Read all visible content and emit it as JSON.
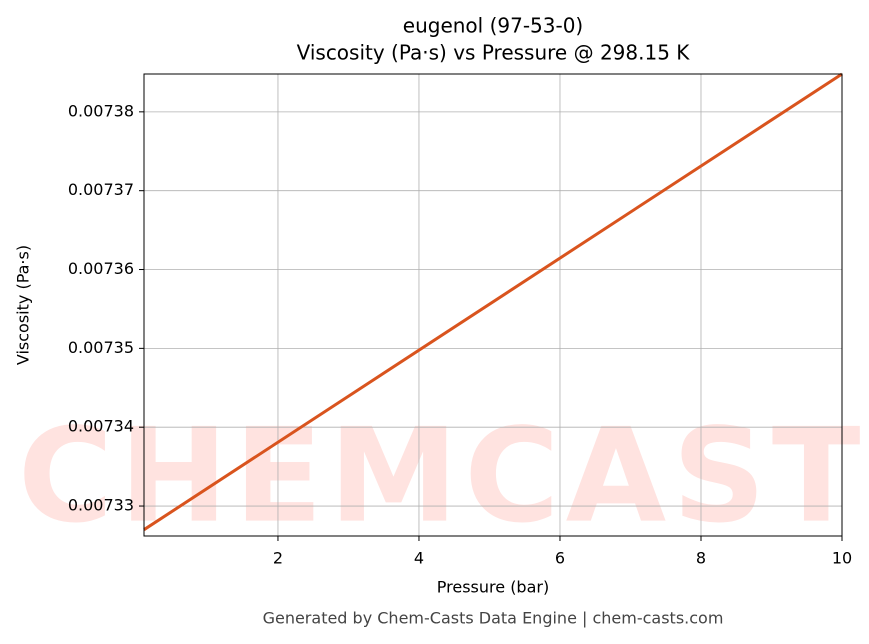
{
  "chart_data": {
    "type": "line",
    "title": "eugenol (97-53-0)",
    "subtitle": "Viscosity (Pa·s) vs Pressure @ 298.15 K",
    "xlabel": "Pressure (bar)",
    "ylabel": "Viscosity (Pa·s)",
    "footer": "Generated by Chem-Casts Data Engine | chem-casts.com",
    "watermark": "CHEMCASTS",
    "x": [
      0.1,
      10
    ],
    "series": [
      {
        "name": "Viscosity",
        "color": "#d9541e",
        "values": [
          0.007327,
          0.0073848
        ]
      }
    ],
    "xlim": [
      0.1,
      10
    ],
    "xticks": [
      2,
      4,
      6,
      8,
      10
    ],
    "ylim": [
      0.0073262,
      0.0073848
    ],
    "yticks": [
      0.00733,
      0.00734,
      0.00735,
      0.00736,
      0.00737,
      0.00738
    ],
    "grid": true
  }
}
